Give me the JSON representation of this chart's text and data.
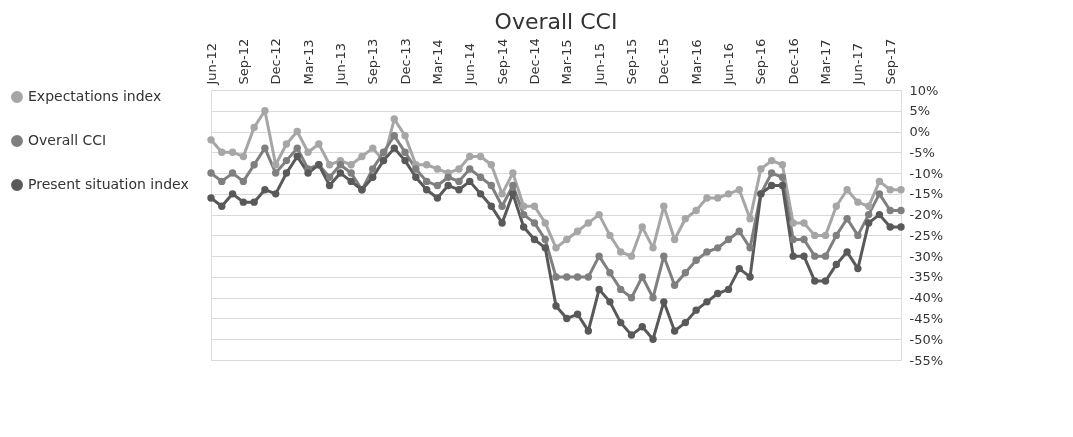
{
  "chart_data": {
    "type": "line",
    "title": "Overall CCI",
    "categories": [
      "Jun-12",
      null,
      null,
      "Sep-12",
      null,
      null,
      "Dec-12",
      null,
      null,
      "Mar-13",
      null,
      null,
      "Jun-13",
      null,
      null,
      "Sep-13",
      null,
      null,
      "Dec-13",
      null,
      null,
      "Mar-14",
      null,
      null,
      "Jun-14",
      null,
      null,
      "Sep-14",
      null,
      null,
      "Dec-14",
      null,
      null,
      "Mar-15",
      null,
      null,
      "Jun-15",
      null,
      null,
      "Sep-15",
      null,
      null,
      "Dec-15",
      null,
      null,
      "Mar-16",
      null,
      null,
      "Jun-16",
      null,
      null,
      "Sep-16",
      null,
      null,
      "Dec-16",
      null,
      null,
      "Mar-17",
      null,
      null,
      "Jun-17",
      null,
      null,
      "Sep-17",
      null
    ],
    "series": [
      {
        "name": "Expectations index",
        "color": "#a6a6a6",
        "values": [
          -2,
          -5,
          -5,
          -6,
          1,
          5,
          -8,
          -3,
          0,
          -5,
          -3,
          -8,
          -7,
          -8,
          -6,
          -4,
          -7,
          3,
          -1,
          -8,
          -8,
          -9,
          -10,
          -9,
          -6,
          -6,
          -8,
          -15,
          -10,
          -18,
          -18,
          -22,
          -28,
          -26,
          -24,
          -22,
          -20,
          -25,
          -29,
          -30,
          -23,
          -28,
          -18,
          -26,
          -21,
          -19,
          -16,
          -16,
          -15,
          -14,
          -21,
          -9,
          -7,
          -8,
          -22,
          -22,
          -25,
          -25,
          -18,
          -14,
          -17,
          -18,
          -12,
          -14,
          -14
        ]
      },
      {
        "name": "Overall CCI",
        "color": "#7f7f7f",
        "values": [
          -10,
          -12,
          -10,
          -12,
          -8,
          -4,
          -10,
          -7,
          -4,
          -9,
          -8,
          -11,
          -8,
          -10,
          -14,
          -9,
          -5,
          -1,
          -5,
          -9,
          -12,
          -13,
          -11,
          -12,
          -9,
          -11,
          -13,
          -18,
          -13,
          -20,
          -22,
          -26,
          -35,
          -35,
          -35,
          -35,
          -30,
          -34,
          -38,
          -40,
          -35,
          -40,
          -30,
          -37,
          -34,
          -31,
          -29,
          -28,
          -26,
          -24,
          -28,
          -15,
          -10,
          -11,
          -26,
          -26,
          -30,
          -30,
          -25,
          -21,
          -25,
          -20,
          -15,
          -19,
          -19
        ]
      },
      {
        "name": "Present situation index",
        "color": "#595959",
        "values": [
          -16,
          -18,
          -15,
          -17,
          -17,
          -14,
          -15,
          -10,
          -6,
          -10,
          -8,
          -13,
          -10,
          -12,
          -14,
          -11,
          -7,
          -4,
          -7,
          -11,
          -14,
          -16,
          -13,
          -14,
          -12,
          -15,
          -18,
          -22,
          -15,
          -23,
          -26,
          -28,
          -42,
          -45,
          -44,
          -48,
          -38,
          -41,
          -46,
          -49,
          -47,
          -50,
          -41,
          -48,
          -46,
          -43,
          -41,
          -39,
          -38,
          -33,
          -35,
          -15,
          -13,
          -13,
          -30,
          -30,
          -36,
          -36,
          -32,
          -29,
          -33,
          -22,
          -20,
          -23,
          -23
        ]
      }
    ],
    "ylim": [
      -55,
      10
    ],
    "yticks": [
      {
        "value": 10,
        "label": "10%"
      },
      {
        "value": 5,
        "label": "5%"
      },
      {
        "value": 0,
        "label": "0%"
      },
      {
        "value": -5,
        "label": "-5%"
      },
      {
        "value": -10,
        "label": "-10%"
      },
      {
        "value": -15,
        "label": "-15%"
      },
      {
        "value": -20,
        "label": "-20%"
      },
      {
        "value": -25,
        "label": "-25%"
      },
      {
        "value": -30,
        "label": "-30%"
      },
      {
        "value": -35,
        "label": "-35%"
      },
      {
        "value": -40,
        "label": "-40%"
      },
      {
        "value": -45,
        "label": "-45%"
      },
      {
        "value": -50,
        "label": "-50%"
      },
      {
        "value": -55,
        "label": "-55%"
      }
    ],
    "grid": "y",
    "legend": "left",
    "marker": "circle",
    "line_style": "solid"
  }
}
